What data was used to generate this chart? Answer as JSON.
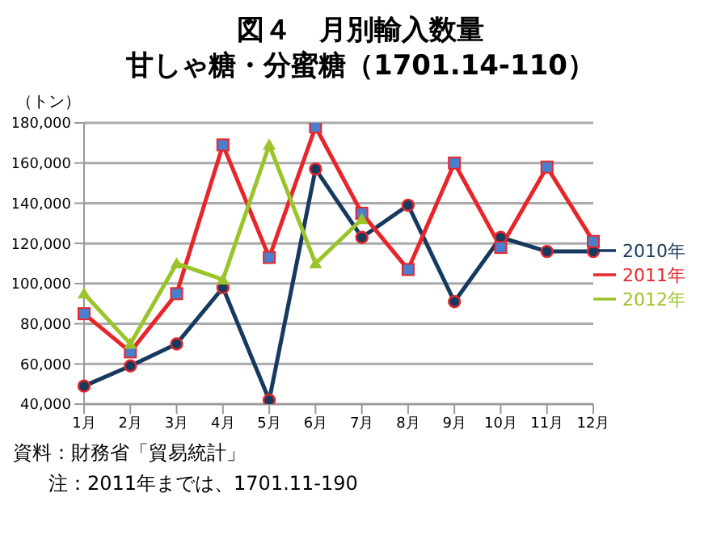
{
  "chart_data": {
    "type": "line",
    "title": "図４　月別輸入数量",
    "subtitle": "甘しゃ糖・分蜜糖（1701.14-110）",
    "ylabel": "（トン）",
    "categories": [
      "1月",
      "2月",
      "3月",
      "4月",
      "5月",
      "6月",
      "7月",
      "8月",
      "9月",
      "10月",
      "11月",
      "12月"
    ],
    "series": [
      {
        "name": "2012年",
        "color": "#9bc32a",
        "marker": "triangle",
        "values": [
          95000,
          70000,
          110000,
          102000,
          169000,
          110000,
          132000,
          null,
          null,
          null,
          null,
          null
        ]
      },
      {
        "name": "2011年",
        "color": "#e8262a",
        "marker": "square",
        "values": [
          85000,
          66000,
          95000,
          169000,
          113000,
          178000,
          135000,
          107000,
          160000,
          118000,
          158000,
          121000
        ]
      },
      {
        "name": "2010年",
        "color": "#163a5f",
        "marker": "circle",
        "values": [
          49000,
          59000,
          70000,
          98000,
          42000,
          157000,
          123000,
          139000,
          91000,
          123000,
          116000,
          116000
        ]
      }
    ],
    "ylim": [
      40000,
      180000
    ],
    "yticks": [
      {
        "value": 40000,
        "label": "40,000"
      },
      {
        "value": 60000,
        "label": "60,000"
      },
      {
        "value": 80000,
        "label": "80,000"
      },
      {
        "value": 100000,
        "label": "100,000"
      },
      {
        "value": 120000,
        "label": "120,000"
      },
      {
        "value": 140000,
        "label": "140,000"
      },
      {
        "value": 160000,
        "label": "160,000"
      },
      {
        "value": 180000,
        "label": "180,000"
      }
    ],
    "grid": "y",
    "legend": "right",
    "annotations": [
      "資料：財務省「貿易統計」",
      "注：2011年までは、1701.11-190"
    ]
  }
}
